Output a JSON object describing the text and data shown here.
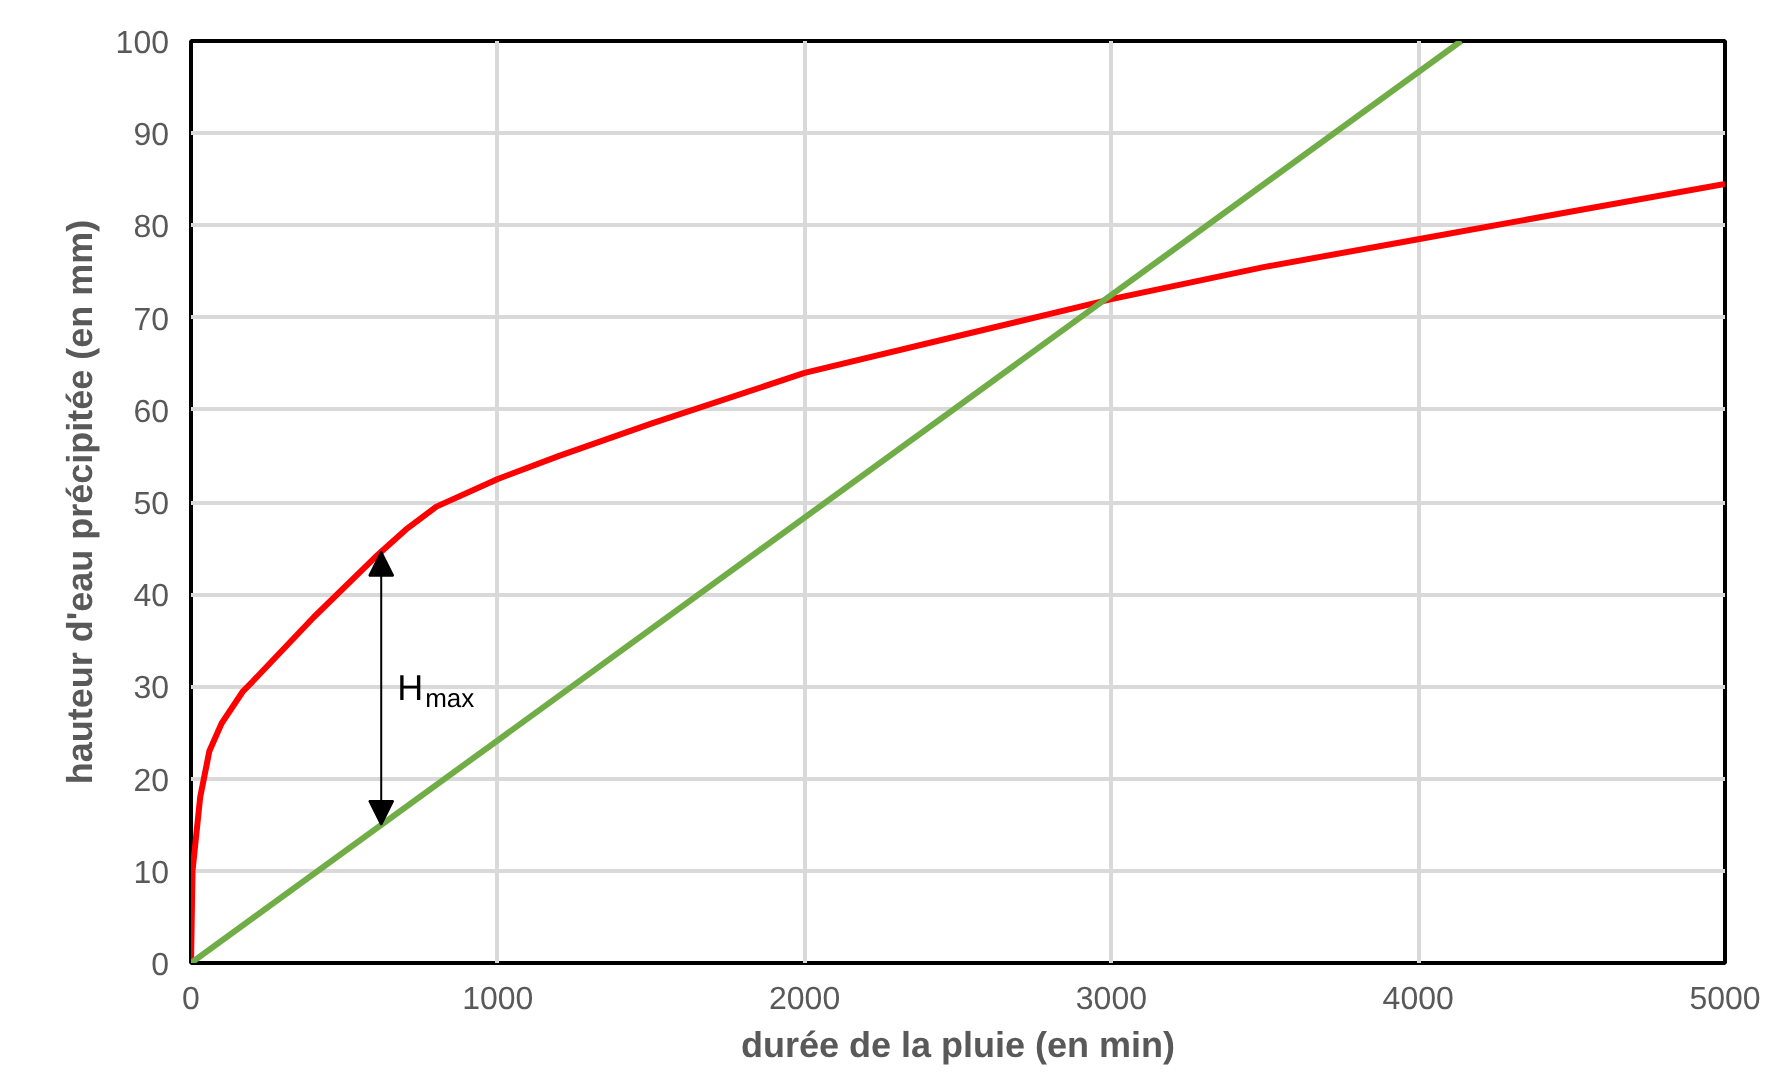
{
  "chart_data": {
    "type": "line",
    "xlabel": "durée de la pluie (en min)",
    "ylabel": "hauteur d'eau précipitée (en mm)",
    "series": [
      {
        "color": "#ff0000",
        "x": [
          0,
          5,
          30,
          60,
          100,
          170,
          200,
          400,
          600,
          700,
          800,
          1000,
          1200,
          1500,
          2000,
          2500,
          3000,
          3500,
          4000,
          4500,
          5000
        ],
        "values": [
          0,
          10,
          18,
          23,
          26,
          29.5,
          30.5,
          37.5,
          44,
          47,
          49.5,
          52.5,
          55,
          58.5,
          64,
          68,
          72,
          75.5,
          78.5,
          81.5,
          84.5
        ]
      },
      {
        "color": "#70ad47",
        "x": [
          0,
          4140
        ],
        "values": [
          0,
          100
        ]
      }
    ],
    "annotations": [
      "H$_{max}$"
    ],
    "xlim": [
      0,
      5000
    ],
    "ylim": [
      0,
      100
    ],
    "xticks": [
      0,
      1000,
      2000,
      3000,
      4000,
      5000
    ],
    "yticks": [
      0,
      10,
      20,
      30,
      40,
      50,
      60,
      70,
      80,
      90,
      100
    ],
    "grid": true,
    "marker": "none",
    "line_style": "solid"
  }
}
